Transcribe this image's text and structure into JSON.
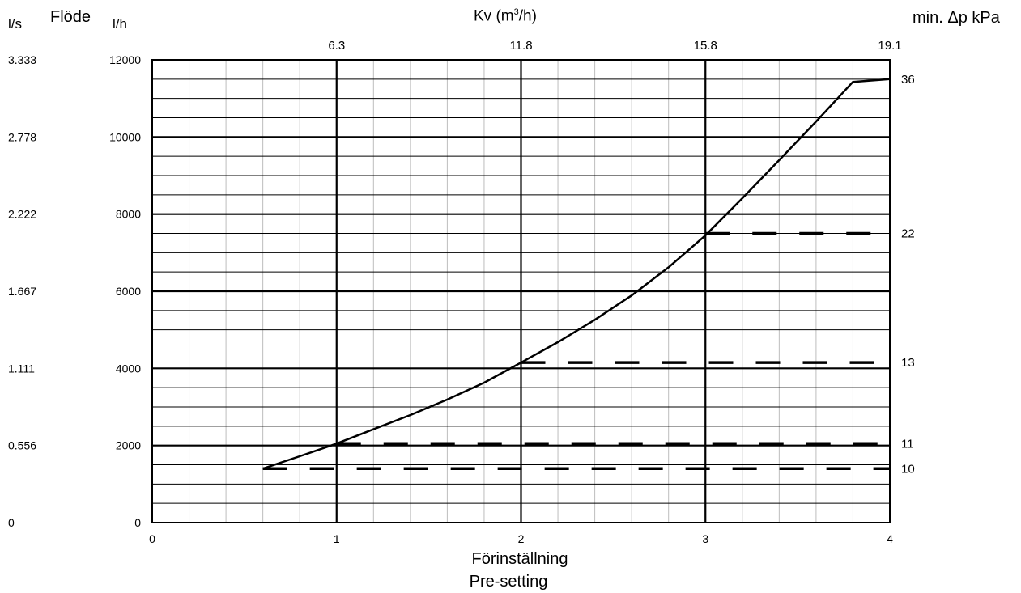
{
  "chart_data": {
    "type": "line",
    "header": {
      "ls_unit": "l/s",
      "flow_title": "Flöde",
      "lh_unit": "l/h",
      "kv_title_prefix": "Kv (m",
      "kv_title_sup": "3",
      "kv_title_suffix": "/h)",
      "dp_title": "min. Δp kPa"
    },
    "xlabel_line1": "Förinställning",
    "xlabel_line2": "Pre-setting",
    "xlim": [
      0,
      4
    ],
    "ylim": [
      0,
      12000
    ],
    "x_ticks": [
      "0",
      "1",
      "2",
      "3",
      "4"
    ],
    "y_ticks_lh": [
      "0",
      "2000",
      "4000",
      "6000",
      "8000",
      "10000",
      "12000"
    ],
    "y_ticks_ls": [
      "0",
      "0.556",
      "1.111",
      "1.667",
      "2.222",
      "2.778",
      "3.333"
    ],
    "kv_ticks": [
      {
        "x": 1,
        "label": "6.3"
      },
      {
        "x": 2,
        "label": "11.8"
      },
      {
        "x": 3,
        "label": "15.8"
      },
      {
        "x": 4,
        "label": "19.1"
      }
    ],
    "grid": {
      "minor_x_step": 0.2,
      "minor_y_step": 500
    },
    "series": [
      {
        "values": [
          [
            0.6,
            1400
          ],
          [
            0.8,
            1720
          ],
          [
            1.0,
            2050
          ],
          [
            1.2,
            2420
          ],
          [
            1.4,
            2790
          ],
          [
            1.6,
            3190
          ],
          [
            1.8,
            3630
          ],
          [
            2.0,
            4150
          ],
          [
            2.2,
            4680
          ],
          [
            2.4,
            5260
          ],
          [
            2.6,
            5890
          ],
          [
            2.8,
            6620
          ],
          [
            3.0,
            7450
          ],
          [
            3.2,
            8410
          ],
          [
            3.4,
            9400
          ],
          [
            3.6,
            10400
          ],
          [
            3.8,
            11430
          ],
          [
            4.0,
            11500
          ]
        ]
      }
    ],
    "dp_lines": [
      {
        "y": 11500,
        "x_start": 4.0,
        "label": "36"
      },
      {
        "y": 7500,
        "x_start": 3.0,
        "label": "22"
      },
      {
        "y": 4150,
        "x_start": 2.0,
        "label": "13"
      },
      {
        "y": 2050,
        "x_start": 1.0,
        "label": "11"
      },
      {
        "y": 1400,
        "x_start": 0.6,
        "label": "10"
      }
    ]
  }
}
